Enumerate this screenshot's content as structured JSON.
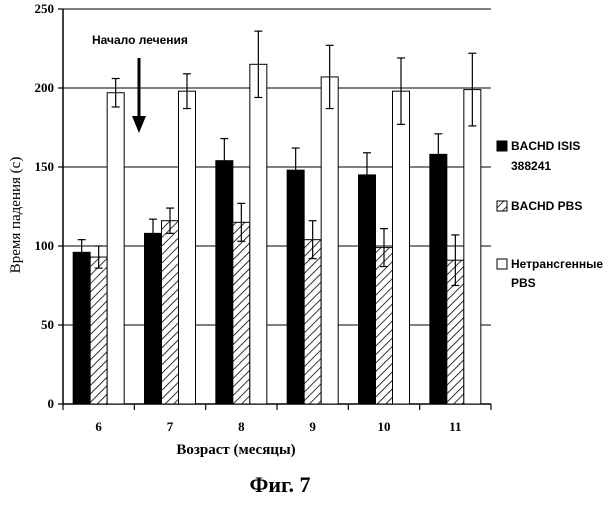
{
  "chart_data": {
    "type": "bar",
    "title": "",
    "xlabel": "Возраст (месяцы)",
    "ylabel": "Время падения (с)",
    "ylim": [
      0,
      250
    ],
    "yticks": [
      "0",
      "50",
      "100",
      "150",
      "200",
      "250"
    ],
    "categories": [
      "6",
      "7",
      "8",
      "9",
      "10",
      "11"
    ],
    "grid": "horizontal",
    "legend_position": "right",
    "series": [
      {
        "name_lines": [
          "BACHD ISIS",
          "388241"
        ],
        "pattern": "solid-black",
        "values": [
          96,
          108,
          154,
          148,
          145,
          158
        ],
        "errors": [
          8,
          9,
          14,
          14,
          14,
          13
        ]
      },
      {
        "name_lines": [
          "BACHD PBS"
        ],
        "pattern": "hatched",
        "values": [
          93,
          116,
          115,
          104,
          99,
          91
        ],
        "errors": [
          7,
          8,
          12,
          12,
          12,
          16
        ]
      },
      {
        "name_lines": [
          "Нетрансгенные",
          "PBS"
        ],
        "pattern": "white",
        "values": [
          197,
          198,
          215,
          207,
          198,
          199
        ],
        "errors": [
          9,
          11,
          21,
          20,
          21,
          23
        ]
      }
    ],
    "annotations": [
      {
        "text": "Начало лечения",
        "category": "6",
        "arrow": "down"
      }
    ]
  },
  "caption": "Фиг. 7"
}
